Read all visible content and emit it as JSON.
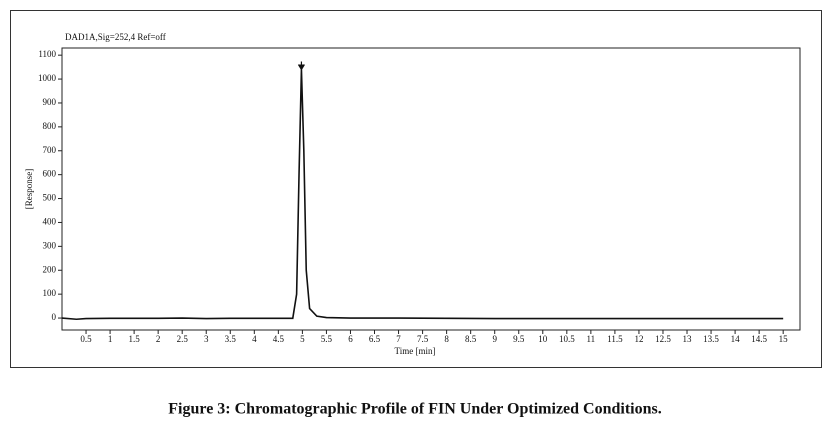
{
  "chart_data": {
    "type": "line",
    "header": "DAD1A,Sig=252,4 Ref=off",
    "xlabel": "Time [min]",
    "ylabel": "[Response]",
    "caption": "Figure 3: Chromatographic Profile of FIN Under Optimized Conditions.",
    "x": [
      0,
      0.3,
      0.5,
      1,
      1.5,
      2,
      2.5,
      3,
      3.5,
      4,
      4.5,
      4.8,
      4.88,
      4.93,
      4.98,
      5.03,
      5.08,
      5.15,
      5.3,
      5.5,
      6,
      7,
      8,
      9,
      10,
      11,
      12,
      13,
      14,
      15
    ],
    "series": [
      {
        "color": "#111111",
        "values": [
          0,
          -5,
          -2,
          -1,
          -1,
          -1,
          0,
          -2,
          -1,
          -1,
          -1,
          -1,
          100,
          600,
          1040,
          700,
          200,
          40,
          8,
          2,
          0,
          0,
          -1,
          -2,
          -2,
          -2,
          -2,
          -2,
          -2,
          -2
        ]
      }
    ],
    "xlim": [
      0,
      15.35
    ],
    "ylim": [
      -50,
      1130
    ],
    "xticks": [
      0.5,
      1,
      1.5,
      2,
      2.5,
      3,
      3.5,
      4,
      4.5,
      5,
      5.5,
      6,
      6.5,
      7,
      7.5,
      8,
      8.5,
      9,
      9.5,
      10,
      10.5,
      11,
      11.5,
      12,
      12.5,
      13,
      13.5,
      14,
      14.5,
      15
    ],
    "yticks": [
      0,
      100,
      200,
      300,
      400,
      500,
      600,
      700,
      800,
      900,
      1000,
      1100
    ]
  }
}
